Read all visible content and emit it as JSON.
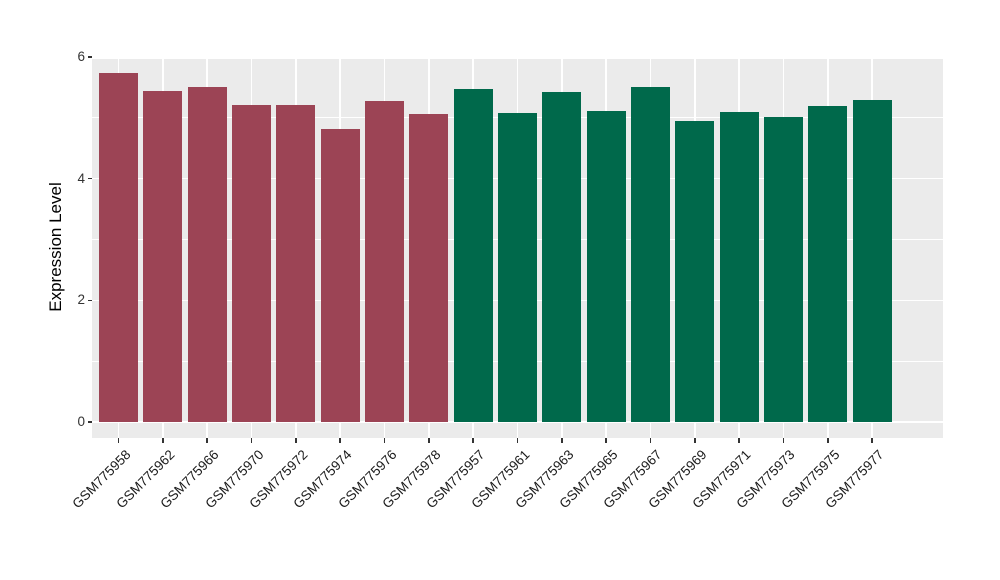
{
  "figure": {
    "background_color": "#ffffff"
  },
  "panel": {
    "background_color": "#ebebeb",
    "gridline_color": "#ffffff",
    "tick_color": "#333333"
  },
  "chart_data": {
    "type": "bar",
    "title": "",
    "xlabel": "",
    "ylabel": "Expression Level",
    "ylim": [
      0,
      6
    ],
    "yticks": [
      0,
      2,
      4,
      6
    ],
    "yticks_minor": [
      1,
      3,
      5
    ],
    "grid": "on",
    "legend": "none",
    "x_tick_rotation_deg": 45,
    "bar_width_fraction": 0.88,
    "group_colors": {
      "maroon": "#9c4455",
      "green": "#00694b"
    },
    "categories": [
      "GSM775958",
      "GSM775962",
      "GSM775966",
      "GSM775970",
      "GSM775972",
      "GSM775974",
      "GSM775976",
      "GSM775978",
      "GSM775957",
      "GSM775961",
      "GSM775963",
      "GSM775965",
      "GSM775967",
      "GSM775969",
      "GSM775971",
      "GSM775973",
      "GSM775975",
      "GSM775977"
    ],
    "bars": [
      {
        "label": "GSM775958",
        "value": 5.73,
        "group": "maroon"
      },
      {
        "label": "GSM775962",
        "value": 5.44,
        "group": "maroon"
      },
      {
        "label": "GSM775966",
        "value": 5.51,
        "group": "maroon"
      },
      {
        "label": "GSM775970",
        "value": 5.21,
        "group": "maroon"
      },
      {
        "label": "GSM775972",
        "value": 5.21,
        "group": "maroon"
      },
      {
        "label": "GSM775974",
        "value": 4.82,
        "group": "maroon"
      },
      {
        "label": "GSM775976",
        "value": 5.28,
        "group": "maroon"
      },
      {
        "label": "GSM775978",
        "value": 5.07,
        "group": "maroon"
      },
      {
        "label": "GSM775957",
        "value": 5.47,
        "group": "green"
      },
      {
        "label": "GSM775961",
        "value": 5.08,
        "group": "green"
      },
      {
        "label": "GSM775963",
        "value": 5.43,
        "group": "green"
      },
      {
        "label": "GSM775965",
        "value": 5.12,
        "group": "green"
      },
      {
        "label": "GSM775967",
        "value": 5.51,
        "group": "green"
      },
      {
        "label": "GSM775969",
        "value": 4.95,
        "group": "green"
      },
      {
        "label": "GSM775971",
        "value": 5.1,
        "group": "green"
      },
      {
        "label": "GSM775973",
        "value": 5.02,
        "group": "green"
      },
      {
        "label": "GSM775975",
        "value": 5.19,
        "group": "green"
      },
      {
        "label": "GSM775977",
        "value": 5.3,
        "group": "green"
      }
    ]
  }
}
